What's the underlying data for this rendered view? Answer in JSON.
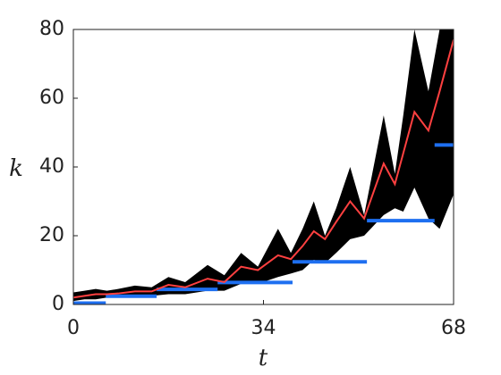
{
  "chart_data": {
    "type": "band",
    "x_label": "t",
    "y_label": "k",
    "xlim": [
      0,
      68
    ],
    "ylim": [
      0,
      80
    ],
    "xticks": [
      0,
      34,
      68
    ],
    "yticks": [
      0,
      20,
      40,
      60,
      80
    ],
    "x": [
      0,
      2,
      4,
      6,
      8,
      11,
      14,
      17,
      20,
      24,
      27,
      30,
      33,
      36.6,
      38.9,
      41,
      43,
      45,
      47,
      49.5,
      52,
      55.5,
      57.5,
      59,
      61,
      63.5,
      65.5,
      68
    ],
    "band": {
      "color": "#000000",
      "upper": [
        3.5,
        4,
        4.5,
        4,
        4.5,
        5.5,
        5,
        8,
        6.5,
        11.5,
        8.5,
        15,
        11,
        22,
        15,
        22,
        30,
        20,
        28,
        40,
        26,
        55,
        38,
        55,
        80,
        62,
        80,
        80
      ],
      "lower": [
        1,
        1.5,
        1.5,
        2,
        2,
        2.5,
        2.5,
        3,
        3,
        4,
        4,
        6,
        6,
        8,
        9,
        10,
        13,
        12,
        15,
        19,
        20,
        26,
        28,
        27,
        34,
        25,
        22,
        32
      ]
    },
    "line": {
      "color": "#ff4040",
      "values": [
        2,
        2.5,
        3,
        3,
        3.2,
        3.8,
        3.8,
        5.7,
        5,
        7.5,
        6.5,
        11,
        10,
        14.3,
        13.2,
        17,
        21.3,
        19,
        24,
        30,
        25,
        41,
        35,
        44,
        56,
        50.6,
        62,
        77
      ]
    },
    "steps": {
      "color": "#1e6ff0",
      "segments": [
        {
          "x": [
            0,
            5.8
          ],
          "value": 0
        },
        {
          "x": [
            5.8,
            14.9
          ],
          "value": 2
        },
        {
          "x": [
            14.9,
            25.8
          ],
          "value": 4
        },
        {
          "x": [
            25.8,
            39.2
          ],
          "value": 6
        },
        {
          "x": [
            39.2,
            52.5
          ],
          "value": 12
        },
        {
          "x": [
            52.5,
            64.6
          ],
          "value": 24
        },
        {
          "x": [
            64.6,
            68
          ],
          "value": 46
        }
      ]
    }
  }
}
